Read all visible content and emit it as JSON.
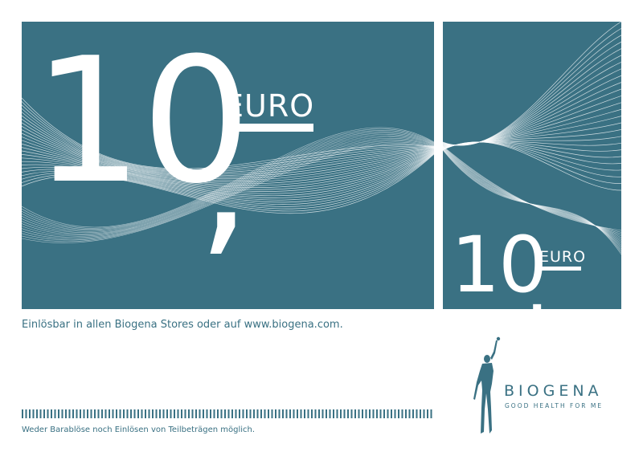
{
  "voucher": {
    "amount": "10",
    "comma": ",",
    "currency": "EURO",
    "stub_amount": "10",
    "stub_comma": ",",
    "stub_currency": "EURO"
  },
  "redeem_text": "Einlösbar in allen Biogena Stores oder auf www.biogena.com.",
  "disclaimer_text": "Weder Barablöse noch Einlösen von Teilbeträgen möglich.",
  "brand": {
    "name": "BIOGENA",
    "tagline": "GOOD HEALTH FOR ME"
  },
  "colors": {
    "panel": "#3a7183",
    "text": "#ffffff",
    "accent": "#3a7183"
  }
}
